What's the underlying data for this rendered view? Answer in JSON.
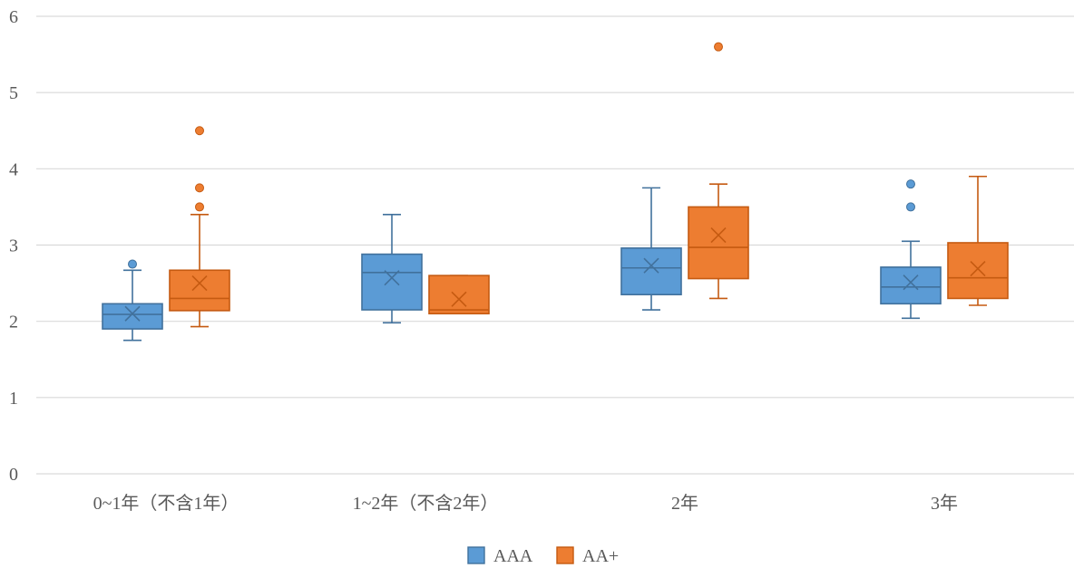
{
  "chart_data": {
    "type": "box",
    "title": "",
    "xlabel": "",
    "ylabel": "",
    "ylim": [
      0,
      6
    ],
    "yticks": [
      0,
      1,
      2,
      3,
      4,
      5,
      6
    ],
    "grid": true,
    "legend_position": "bottom",
    "categories": [
      "0~1年（不含1年）",
      "1~2年（不含2年）",
      "2年",
      "3年"
    ],
    "series": [
      {
        "name": "AAA",
        "color": "#5B9BD5",
        "stroke": "#41719C",
        "boxes": [
          {
            "min": 1.75,
            "q1": 1.9,
            "median": 2.09,
            "q3": 2.23,
            "max": 2.67,
            "mean": 2.1,
            "outliers": [
              2.75
            ]
          },
          {
            "min": 1.98,
            "q1": 2.15,
            "median": 2.64,
            "q3": 2.88,
            "max": 3.4,
            "mean": 2.57,
            "outliers": []
          },
          {
            "min": 2.15,
            "q1": 2.35,
            "median": 2.7,
            "q3": 2.96,
            "max": 3.75,
            "mean": 2.73,
            "outliers": []
          },
          {
            "min": 2.04,
            "q1": 2.23,
            "median": 2.45,
            "q3": 2.71,
            "max": 3.05,
            "mean": 2.51,
            "outliers": [
              3.5,
              3.8
            ]
          }
        ]
      },
      {
        "name": "AA+",
        "color": "#ED7D31",
        "stroke": "#C55A11",
        "boxes": [
          {
            "min": 1.93,
            "q1": 2.14,
            "median": 2.3,
            "q3": 2.67,
            "max": 3.4,
            "mean": 2.5,
            "outliers": [
              3.5,
              3.75,
              4.5
            ]
          },
          {
            "min": 2.1,
            "q1": 2.1,
            "median": 2.15,
            "q3": 2.6,
            "max": 2.6,
            "mean": 2.29,
            "outliers": []
          },
          {
            "min": 2.3,
            "q1": 2.56,
            "median": 2.97,
            "q3": 3.5,
            "max": 3.8,
            "mean": 3.13,
            "outliers": [
              5.6
            ]
          },
          {
            "min": 2.21,
            "q1": 2.3,
            "median": 2.57,
            "q3": 3.03,
            "max": 3.9,
            "mean": 2.69,
            "outliers": []
          }
        ]
      }
    ]
  }
}
